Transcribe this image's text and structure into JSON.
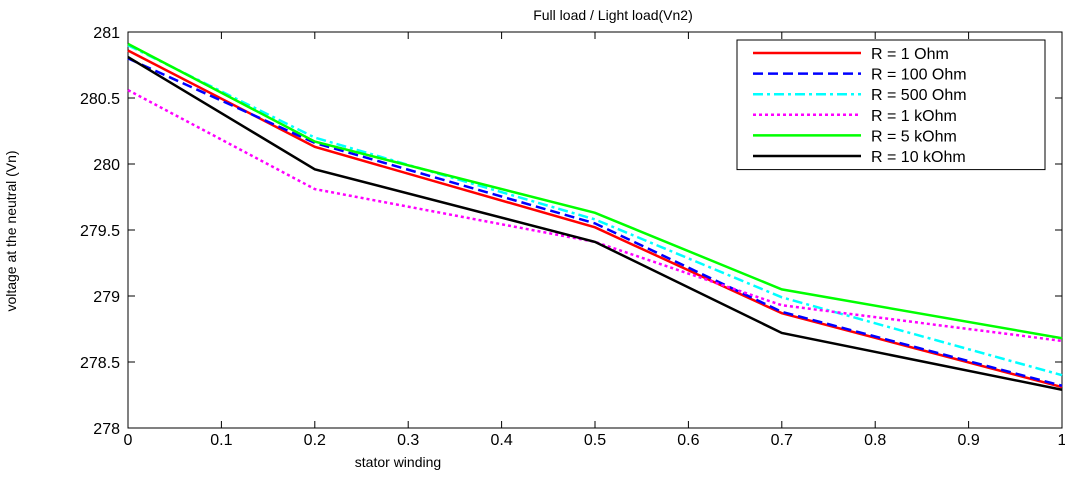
{
  "chart_data": {
    "type": "line",
    "title": "Full load / Light load(Vn2)",
    "xlabel": "stator winding",
    "ylabel": "voltage at the neutral (Vn)",
    "xlim": [
      0,
      1
    ],
    "ylim": [
      278,
      281
    ],
    "x_ticks": [
      "0",
      "0.1",
      "0.2",
      "0.3",
      "0.4",
      "0.5",
      "0.6",
      "0.7",
      "0.8",
      "0.9",
      "1"
    ],
    "y_ticks": [
      "278",
      "278.5",
      "279",
      "279.5",
      "280",
      "280.5",
      "281"
    ],
    "grid": false,
    "legend_position": "top-right",
    "x": [
      0,
      0.2,
      0.5,
      0.7,
      1
    ],
    "series": [
      {
        "name": "R = 1 Ohm",
        "color": "#ff0000",
        "style": "solid",
        "values": [
          280.86,
          280.13,
          279.52,
          278.87,
          278.31
        ]
      },
      {
        "name": "R = 100 Ohm",
        "color": "#0000ff",
        "style": "dashed",
        "values": [
          280.8,
          280.16,
          279.55,
          278.88,
          278.32
        ]
      },
      {
        "name": "R = 500 Ohm",
        "color": "#00ffff",
        "style": "dashdot",
        "values": [
          280.9,
          280.2,
          279.58,
          278.99,
          278.4
        ]
      },
      {
        "name": "R = 1 kOhm",
        "color": "#ff00ff",
        "style": "dotted",
        "values": [
          280.56,
          279.81,
          279.41,
          278.93,
          278.66
        ]
      },
      {
        "name": "R = 5 kOhm",
        "color": "#00ff00",
        "style": "solid",
        "values": [
          280.91,
          280.17,
          279.63,
          279.05,
          278.68
        ]
      },
      {
        "name": "R = 10 kOhm",
        "color": "#000000",
        "style": "solid",
        "values": [
          280.81,
          279.96,
          279.41,
          278.72,
          278.29
        ]
      }
    ]
  }
}
